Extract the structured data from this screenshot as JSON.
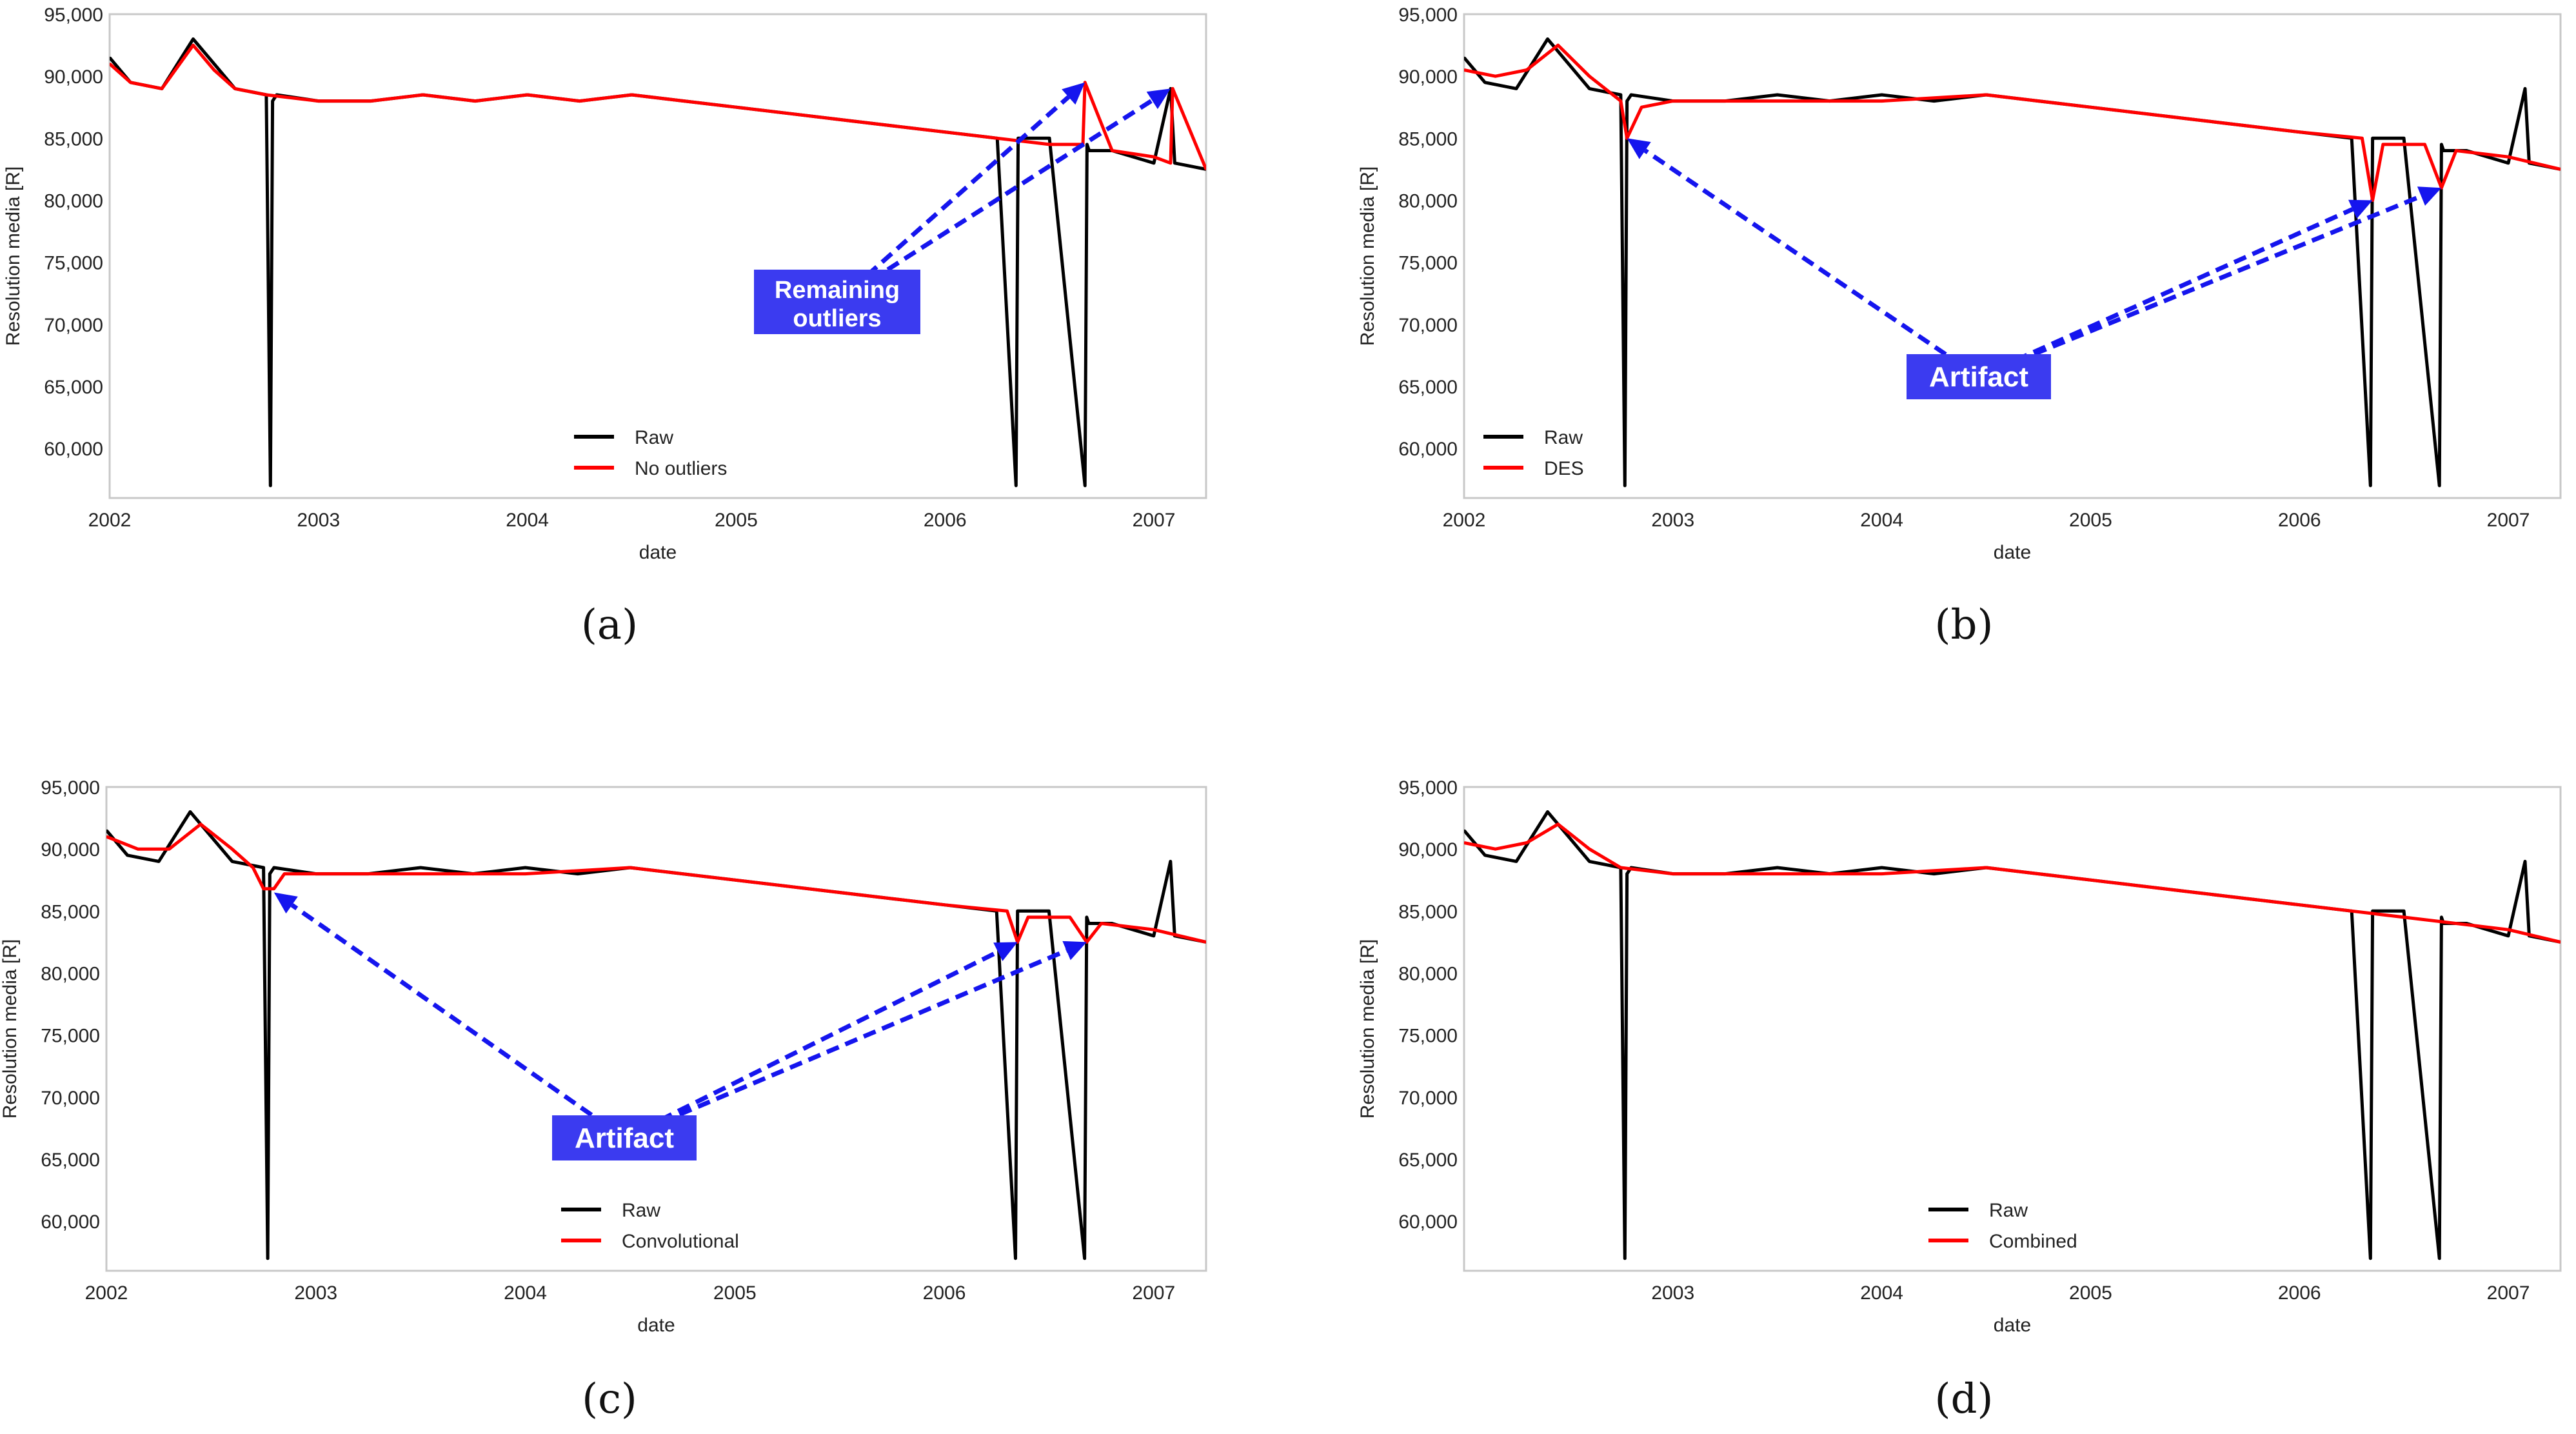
{
  "figure": {
    "x_axis_label": "date",
    "y_axis_label": "Resolution media [R]"
  },
  "chart_data": [
    {
      "type": "line",
      "panel_label": "(a)",
      "xlabel": "date",
      "ylabel": "Resolution media [R]",
      "xlim": [
        2002.0,
        2007.25
      ],
      "ylim": [
        56000,
        95000
      ],
      "x_ticks": [
        2002,
        2003,
        2004,
        2005,
        2006,
        2007
      ],
      "x_tick_labels": [
        "2002",
        "2003",
        "2004",
        "2005",
        "2006",
        "2007"
      ],
      "y_ticks": [
        60000,
        65000,
        70000,
        75000,
        80000,
        85000,
        90000,
        95000
      ],
      "y_tick_labels": [
        "60,000",
        "65,000",
        "70,000",
        "75,000",
        "80,000",
        "85,000",
        "90,000",
        "95,000"
      ],
      "grid": false,
      "legend_position": "lower-center",
      "series": [
        {
          "name": "Raw",
          "color": "#000000",
          "x": [
            2002.0,
            2002.1,
            2002.25,
            2002.4,
            2002.5,
            2002.6,
            2002.75,
            2002.77,
            2002.78,
            2002.8,
            2003.0,
            2003.25,
            2003.5,
            2003.75,
            2004.0,
            2004.25,
            2004.5,
            2004.75,
            2005.0,
            2005.25,
            2005.5,
            2005.75,
            2006.0,
            2006.25,
            2006.34,
            2006.35,
            2006.36,
            2006.5,
            2006.67,
            2006.68,
            2006.69,
            2006.8,
            2007.0,
            2007.08,
            2007.1,
            2007.25
          ],
          "values": [
            91500,
            89500,
            89000,
            93000,
            91000,
            89000,
            88500,
            57000,
            88000,
            88500,
            88000,
            88000,
            88500,
            88000,
            88500,
            88000,
            88500,
            88000,
            87500,
            87000,
            86500,
            86000,
            85500,
            85000,
            57000,
            85000,
            85000,
            85000,
            57000,
            84500,
            84000,
            84000,
            83000,
            89000,
            83000,
            82500
          ]
        },
        {
          "name": "No outliers",
          "color": "#ff0000",
          "x": [
            2002.0,
            2002.1,
            2002.25,
            2002.4,
            2002.5,
            2002.6,
            2002.75,
            2003.0,
            2003.25,
            2003.5,
            2003.75,
            2004.0,
            2004.25,
            2004.5,
            2004.75,
            2005.0,
            2005.25,
            2005.5,
            2005.75,
            2006.0,
            2006.25,
            2006.5,
            2006.66,
            2006.67,
            2006.8,
            2007.0,
            2007.08,
            2007.09,
            2007.25
          ],
          "values": [
            91000,
            89500,
            89000,
            92500,
            90500,
            89000,
            88500,
            88000,
            88000,
            88500,
            88000,
            88500,
            88000,
            88500,
            88000,
            87500,
            87000,
            86500,
            86000,
            85500,
            85000,
            84500,
            84500,
            89500,
            84000,
            83500,
            83000,
            89000,
            82500
          ]
        }
      ],
      "annotations": [
        {
          "text": "Remaining outliers",
          "lines": [
            "Remaining",
            "outliers"
          ],
          "arrow_targets": [
            [
              2006.67,
              89500
            ],
            [
              2007.08,
              89000
            ]
          ]
        }
      ]
    },
    {
      "type": "line",
      "panel_label": "(b)",
      "xlabel": "date",
      "ylabel": "Resolution media [R]",
      "xlim": [
        2002.0,
        2007.25
      ],
      "ylim": [
        56000,
        95000
      ],
      "x_ticks": [
        2002,
        2003,
        2004,
        2005,
        2006,
        2007
      ],
      "x_tick_labels": [
        "2002",
        "2003",
        "2004",
        "2005",
        "2006",
        "2007"
      ],
      "y_ticks": [
        60000,
        65000,
        70000,
        75000,
        80000,
        85000,
        90000,
        95000
      ],
      "y_tick_labels": [
        "60,000",
        "65,000",
        "70,000",
        "75,000",
        "80,000",
        "85,000",
        "90,000",
        "95,000"
      ],
      "grid": false,
      "legend_position": "lower-left",
      "series": [
        {
          "name": "Raw",
          "color": "#000000",
          "x": [
            2002.0,
            2002.1,
            2002.25,
            2002.4,
            2002.5,
            2002.6,
            2002.75,
            2002.77,
            2002.78,
            2002.8,
            2003.0,
            2003.25,
            2003.5,
            2003.75,
            2004.0,
            2004.25,
            2004.5,
            2004.75,
            2005.0,
            2005.25,
            2005.5,
            2005.75,
            2006.0,
            2006.25,
            2006.34,
            2006.35,
            2006.36,
            2006.5,
            2006.67,
            2006.68,
            2006.69,
            2006.8,
            2007.0,
            2007.08,
            2007.1,
            2007.25
          ],
          "values": [
            91500,
            89500,
            89000,
            93000,
            91000,
            89000,
            88500,
            57000,
            88000,
            88500,
            88000,
            88000,
            88500,
            88000,
            88500,
            88000,
            88500,
            88000,
            87500,
            87000,
            86500,
            86000,
            85500,
            85000,
            57000,
            85000,
            85000,
            85000,
            57000,
            84500,
            84000,
            84000,
            83000,
            89000,
            83000,
            82500
          ]
        },
        {
          "name": "DES",
          "color": "#ff0000",
          "x": [
            2002.0,
            2002.15,
            2002.3,
            2002.45,
            2002.6,
            2002.75,
            2002.78,
            2002.85,
            2003.0,
            2003.5,
            2004.0,
            2004.5,
            2005.0,
            2005.5,
            2006.0,
            2006.3,
            2006.35,
            2006.4,
            2006.6,
            2006.68,
            2006.75,
            2007.0,
            2007.25
          ],
          "values": [
            90500,
            90000,
            90500,
            92500,
            90000,
            88000,
            85000,
            87500,
            88000,
            88000,
            88000,
            88500,
            87500,
            86500,
            85500,
            85000,
            80000,
            84500,
            84500,
            81000,
            84000,
            83500,
            82500
          ]
        }
      ],
      "annotations": [
        {
          "text": "Artifact",
          "arrow_targets": [
            [
              2002.78,
              85000
            ],
            [
              2006.35,
              80000
            ],
            [
              2006.68,
              81000
            ]
          ]
        }
      ]
    },
    {
      "type": "line",
      "panel_label": "(c)",
      "xlabel": "date",
      "ylabel": "Resolution media [R]",
      "xlim": [
        2002.0,
        2007.25
      ],
      "ylim": [
        56000,
        95000
      ],
      "x_ticks": [
        2002,
        2003,
        2004,
        2005,
        2006,
        2007
      ],
      "x_tick_labels": [
        "2002",
        "2003",
        "2004",
        "2005",
        "2006",
        "2007"
      ],
      "y_ticks": [
        60000,
        65000,
        70000,
        75000,
        80000,
        85000,
        90000,
        95000
      ],
      "y_tick_labels": [
        "60,000",
        "65,000",
        "70,000",
        "75,000",
        "80,000",
        "85,000",
        "90,000",
        "95,000"
      ],
      "grid": false,
      "legend_position": "lower-center",
      "series": [
        {
          "name": "Raw",
          "color": "#000000",
          "x": [
            2002.0,
            2002.1,
            2002.25,
            2002.4,
            2002.5,
            2002.6,
            2002.75,
            2002.77,
            2002.78,
            2002.8,
            2003.0,
            2003.25,
            2003.5,
            2003.75,
            2004.0,
            2004.25,
            2004.5,
            2004.75,
            2005.0,
            2005.25,
            2005.5,
            2005.75,
            2006.0,
            2006.25,
            2006.34,
            2006.35,
            2006.36,
            2006.5,
            2006.67,
            2006.68,
            2006.69,
            2006.8,
            2007.0,
            2007.08,
            2007.1,
            2007.25
          ],
          "values": [
            91500,
            89500,
            89000,
            93000,
            91000,
            89000,
            88500,
            57000,
            88000,
            88500,
            88000,
            88000,
            88500,
            88000,
            88500,
            88000,
            88500,
            88000,
            87500,
            87000,
            86500,
            86000,
            85500,
            85000,
            57000,
            85000,
            85000,
            85000,
            57000,
            84500,
            84000,
            84000,
            83000,
            89000,
            83000,
            82500
          ]
        },
        {
          "name": "Convolutional",
          "color": "#ff0000",
          "x": [
            2002.0,
            2002.15,
            2002.3,
            2002.45,
            2002.6,
            2002.7,
            2002.75,
            2002.8,
            2002.85,
            2003.0,
            2003.5,
            2004.0,
            2004.5,
            2005.0,
            2005.5,
            2006.0,
            2006.3,
            2006.35,
            2006.4,
            2006.6,
            2006.68,
            2006.75,
            2007.0,
            2007.25
          ],
          "values": [
            91000,
            90000,
            90000,
            92000,
            90000,
            88500,
            86800,
            86800,
            88000,
            88000,
            88000,
            88000,
            88500,
            87500,
            86500,
            85500,
            85000,
            82500,
            84500,
            84500,
            82500,
            84000,
            83500,
            82500
          ]
        }
      ],
      "annotations": [
        {
          "text": "Artifact",
          "arrow_targets": [
            [
              2002.8,
              86500
            ],
            [
              2006.35,
              82500
            ],
            [
              2006.68,
              82500
            ]
          ]
        }
      ]
    },
    {
      "type": "line",
      "panel_label": "(d)",
      "xlabel": "date",
      "ylabel": "Resolution media [R]",
      "xlim": [
        2002.0,
        2007.25
      ],
      "ylim": [
        56000,
        95000
      ],
      "x_ticks": [
        2003,
        2004,
        2005,
        2006,
        2007
      ],
      "x_tick_labels": [
        "2003",
        "2004",
        "2005",
        "2006",
        "2007"
      ],
      "y_ticks": [
        60000,
        65000,
        70000,
        75000,
        80000,
        85000,
        90000,
        95000
      ],
      "y_tick_labels": [
        "60,000",
        "65,000",
        "70,000",
        "75,000",
        "80,000",
        "85,000",
        "90,000",
        "95,000"
      ],
      "grid": false,
      "legend_position": "lower-center",
      "series": [
        {
          "name": "Raw",
          "color": "#000000",
          "x": [
            2002.0,
            2002.1,
            2002.25,
            2002.4,
            2002.5,
            2002.6,
            2002.75,
            2002.77,
            2002.78,
            2002.8,
            2003.0,
            2003.25,
            2003.5,
            2003.75,
            2004.0,
            2004.25,
            2004.5,
            2004.75,
            2005.0,
            2005.25,
            2005.5,
            2005.75,
            2006.0,
            2006.25,
            2006.34,
            2006.35,
            2006.36,
            2006.5,
            2006.67,
            2006.68,
            2006.69,
            2006.8,
            2007.0,
            2007.08,
            2007.1,
            2007.25
          ],
          "values": [
            91500,
            89500,
            89000,
            93000,
            91000,
            89000,
            88500,
            57000,
            88000,
            88500,
            88000,
            88000,
            88500,
            88000,
            88500,
            88000,
            88500,
            88000,
            87500,
            87000,
            86500,
            86000,
            85500,
            85000,
            57000,
            85000,
            85000,
            85000,
            57000,
            84500,
            84000,
            84000,
            83000,
            89000,
            83000,
            82500
          ]
        },
        {
          "name": "Combined",
          "color": "#ff0000",
          "x": [
            2002.0,
            2002.15,
            2002.3,
            2002.45,
            2002.6,
            2002.75,
            2003.0,
            2003.5,
            2004.0,
            2004.5,
            2005.0,
            2005.5,
            2006.0,
            2006.5,
            2007.0,
            2007.25
          ],
          "values": [
            90500,
            90000,
            90500,
            92000,
            90000,
            88500,
            88000,
            88000,
            88000,
            88500,
            87500,
            86500,
            85500,
            84500,
            83500,
            82500
          ]
        }
      ],
      "annotations": []
    }
  ]
}
